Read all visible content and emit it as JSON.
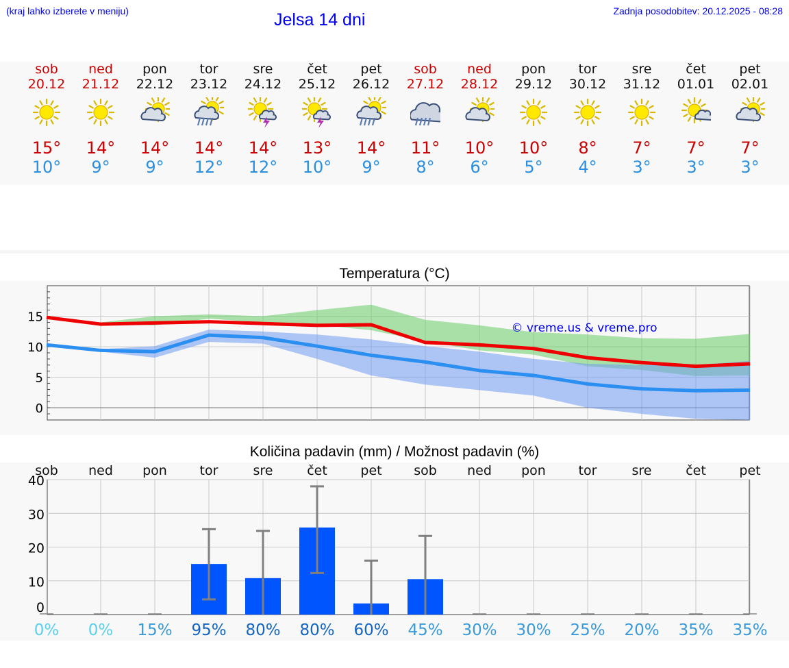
{
  "header": {
    "hint": "(kraj lahko izberete v meniju)",
    "title": "Jelsa 14 dni",
    "updated": "Zadnja posodobitev: 20.12.2025 - 08:28"
  },
  "days": [
    {
      "name": "sob",
      "date": "20.12",
      "weekend": true,
      "icon": "sun",
      "max": "15°",
      "min": "10°"
    },
    {
      "name": "ned",
      "date": "21.12",
      "weekend": true,
      "icon": "sun",
      "max": "14°",
      "min": "9°"
    },
    {
      "name": "pon",
      "date": "22.12",
      "weekend": false,
      "icon": "sun-cloud",
      "max": "14°",
      "min": "9°"
    },
    {
      "name": "tor",
      "date": "23.12",
      "weekend": false,
      "icon": "sun-rain",
      "max": "14°",
      "min": "12°"
    },
    {
      "name": "sre",
      "date": "24.12",
      "weekend": false,
      "icon": "sun-storm",
      "max": "14°",
      "min": "12°"
    },
    {
      "name": "čet",
      "date": "25.12",
      "weekend": false,
      "icon": "sun-storm",
      "max": "13°",
      "min": "10°"
    },
    {
      "name": "pet",
      "date": "26.12",
      "weekend": false,
      "icon": "sun-rain",
      "max": "14°",
      "min": "9°"
    },
    {
      "name": "sob",
      "date": "27.12",
      "weekend": true,
      "icon": "cloud-rain",
      "max": "11°",
      "min": "8°"
    },
    {
      "name": "ned",
      "date": "28.12",
      "weekend": true,
      "icon": "sun-cloud",
      "max": "10°",
      "min": "6°"
    },
    {
      "name": "pon",
      "date": "29.12",
      "weekend": false,
      "icon": "sun",
      "max": "10°",
      "min": "5°"
    },
    {
      "name": "tor",
      "date": "30.12",
      "weekend": false,
      "icon": "sun",
      "max": "8°",
      "min": "4°"
    },
    {
      "name": "sre",
      "date": "31.12",
      "weekend": false,
      "icon": "sun",
      "max": "7°",
      "min": "3°"
    },
    {
      "name": "čet",
      "date": "01.01",
      "weekend": false,
      "icon": "sun-cloud-small",
      "max": "7°",
      "min": "3°"
    },
    {
      "name": "pet",
      "date": "02.01",
      "weekend": false,
      "icon": "sun-cloud",
      "max": "7°",
      "min": "3°"
    }
  ],
  "colors": {
    "max_line": "#ee0000",
    "min_line": "#2a8ff0",
    "max_band": "#66cc66",
    "min_band": "#6f9af0",
    "bar": "#0055ff",
    "whisker": "#808080",
    "watermark": "#0000ee"
  },
  "chart_data": [
    {
      "type": "line",
      "title": "Temperatura (°C)",
      "watermark": "© vreme.us & vreme.pro",
      "x": [
        0,
        1,
        2,
        3,
        4,
        5,
        6,
        7,
        8,
        9,
        10,
        11,
        12,
        13
      ],
      "ylim": [
        -2,
        20
      ],
      "yticks": [
        0,
        5,
        10,
        15
      ],
      "grid": true,
      "series": [
        {
          "name": "max",
          "values": [
            14.8,
            13.7,
            13.9,
            14.1,
            13.8,
            13.5,
            13.6,
            10.7,
            10.3,
            9.7,
            8.2,
            7.4,
            6.8,
            7.2
          ],
          "band_low": [
            14.8,
            13.7,
            13.5,
            14.6,
            14.0,
            13.6,
            12.7,
            10.9,
            9.4,
            8.7,
            6.8,
            6.2,
            5.2,
            5.3
          ],
          "band_high": [
            14.8,
            14.0,
            15.0,
            15.3,
            15.0,
            16.0,
            16.9,
            14.4,
            13.5,
            12.4,
            12.0,
            11.4,
            11.3,
            12.1
          ]
        },
        {
          "name": "min",
          "values": [
            10.3,
            9.4,
            9.2,
            11.9,
            11.5,
            10.1,
            8.6,
            7.5,
            6.1,
            5.3,
            3.9,
            3.1,
            2.8,
            2.9
          ],
          "band_low": [
            10.3,
            9.2,
            8.2,
            10.8,
            10.5,
            8.0,
            5.3,
            3.8,
            2.9,
            2.0,
            0.0,
            -1.0,
            -1.8,
            -2.0
          ],
          "band_high": [
            10.3,
            9.6,
            10.1,
            12.8,
            12.5,
            12.0,
            11.2,
            10.1,
            9.2,
            8.0,
            7.2,
            7.0,
            7.0,
            7.7
          ]
        }
      ]
    },
    {
      "type": "bar",
      "title": "Količina padavin (mm) / Možnost padavin (%)",
      "categories": [
        "sob",
        "ned",
        "pon",
        "tor",
        "sre",
        "čet",
        "pet",
        "sob",
        "ned",
        "pon",
        "tor",
        "sre",
        "čet",
        "pet"
      ],
      "values": [
        0,
        0,
        0,
        15,
        10.8,
        25.8,
        3.3,
        10.5,
        0,
        0,
        0,
        0,
        0,
        0
      ],
      "error_low": [
        0,
        0,
        0,
        4.5,
        0,
        12.3,
        0,
        0,
        0,
        0,
        0,
        0,
        0,
        0
      ],
      "error_high": [
        0,
        0,
        0,
        25.3,
        24.8,
        38.0,
        16.0,
        23.3,
        0,
        0,
        0,
        0,
        0,
        0
      ],
      "probability": [
        "0%",
        "0%",
        "15%",
        "95%",
        "80%",
        "80%",
        "60%",
        "45%",
        "30%",
        "30%",
        "25%",
        "20%",
        "35%",
        "35%"
      ],
      "ylim": [
        0,
        40
      ],
      "yticks": [
        0,
        10,
        20,
        30,
        40
      ],
      "grid": true
    }
  ]
}
